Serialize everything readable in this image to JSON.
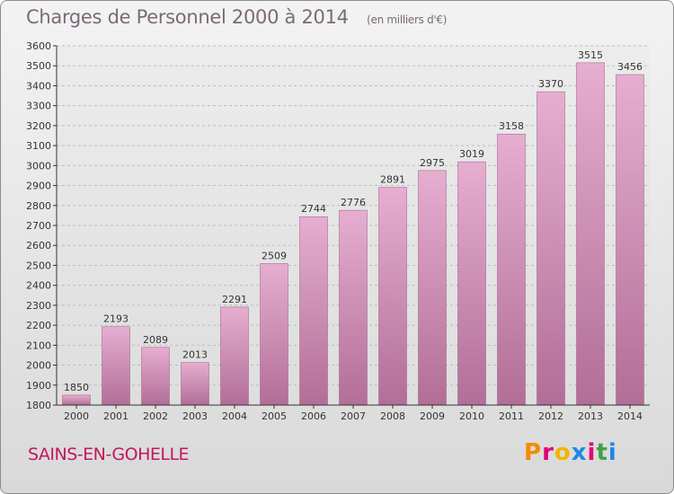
{
  "header": {
    "title": "Charges de Personnel 2000 à 2014",
    "subtitle": "(en milliers d'€)"
  },
  "footer": {
    "commune": "SAINS-EN-GOHELLE",
    "logo_text": "Proxiti",
    "logo_colors": [
      "#f28c00",
      "#e3007a",
      "#f2b400",
      "#1e88e5",
      "#e3007a",
      "#43a047",
      "#1e88e5"
    ]
  },
  "chart_data": {
    "type": "bar",
    "categories": [
      "2000",
      "2001",
      "2002",
      "2003",
      "2004",
      "2005",
      "2006",
      "2007",
      "2008",
      "2009",
      "2010",
      "2011",
      "2012",
      "2013",
      "2014"
    ],
    "values": [
      1850,
      2193,
      2089,
      2013,
      2291,
      2509,
      2744,
      2776,
      2891,
      2975,
      3019,
      3158,
      3370,
      3515,
      3456
    ],
    "ylim": [
      1800,
      3600
    ],
    "yticks": [
      1800,
      1900,
      2000,
      2100,
      2200,
      2300,
      2400,
      2500,
      2600,
      2700,
      2800,
      2900,
      3000,
      3100,
      3200,
      3300,
      3400,
      3500,
      3600
    ],
    "grid": true,
    "bar_color_top": "#e6aed0",
    "bar_color_bottom": "#b26e97"
  }
}
